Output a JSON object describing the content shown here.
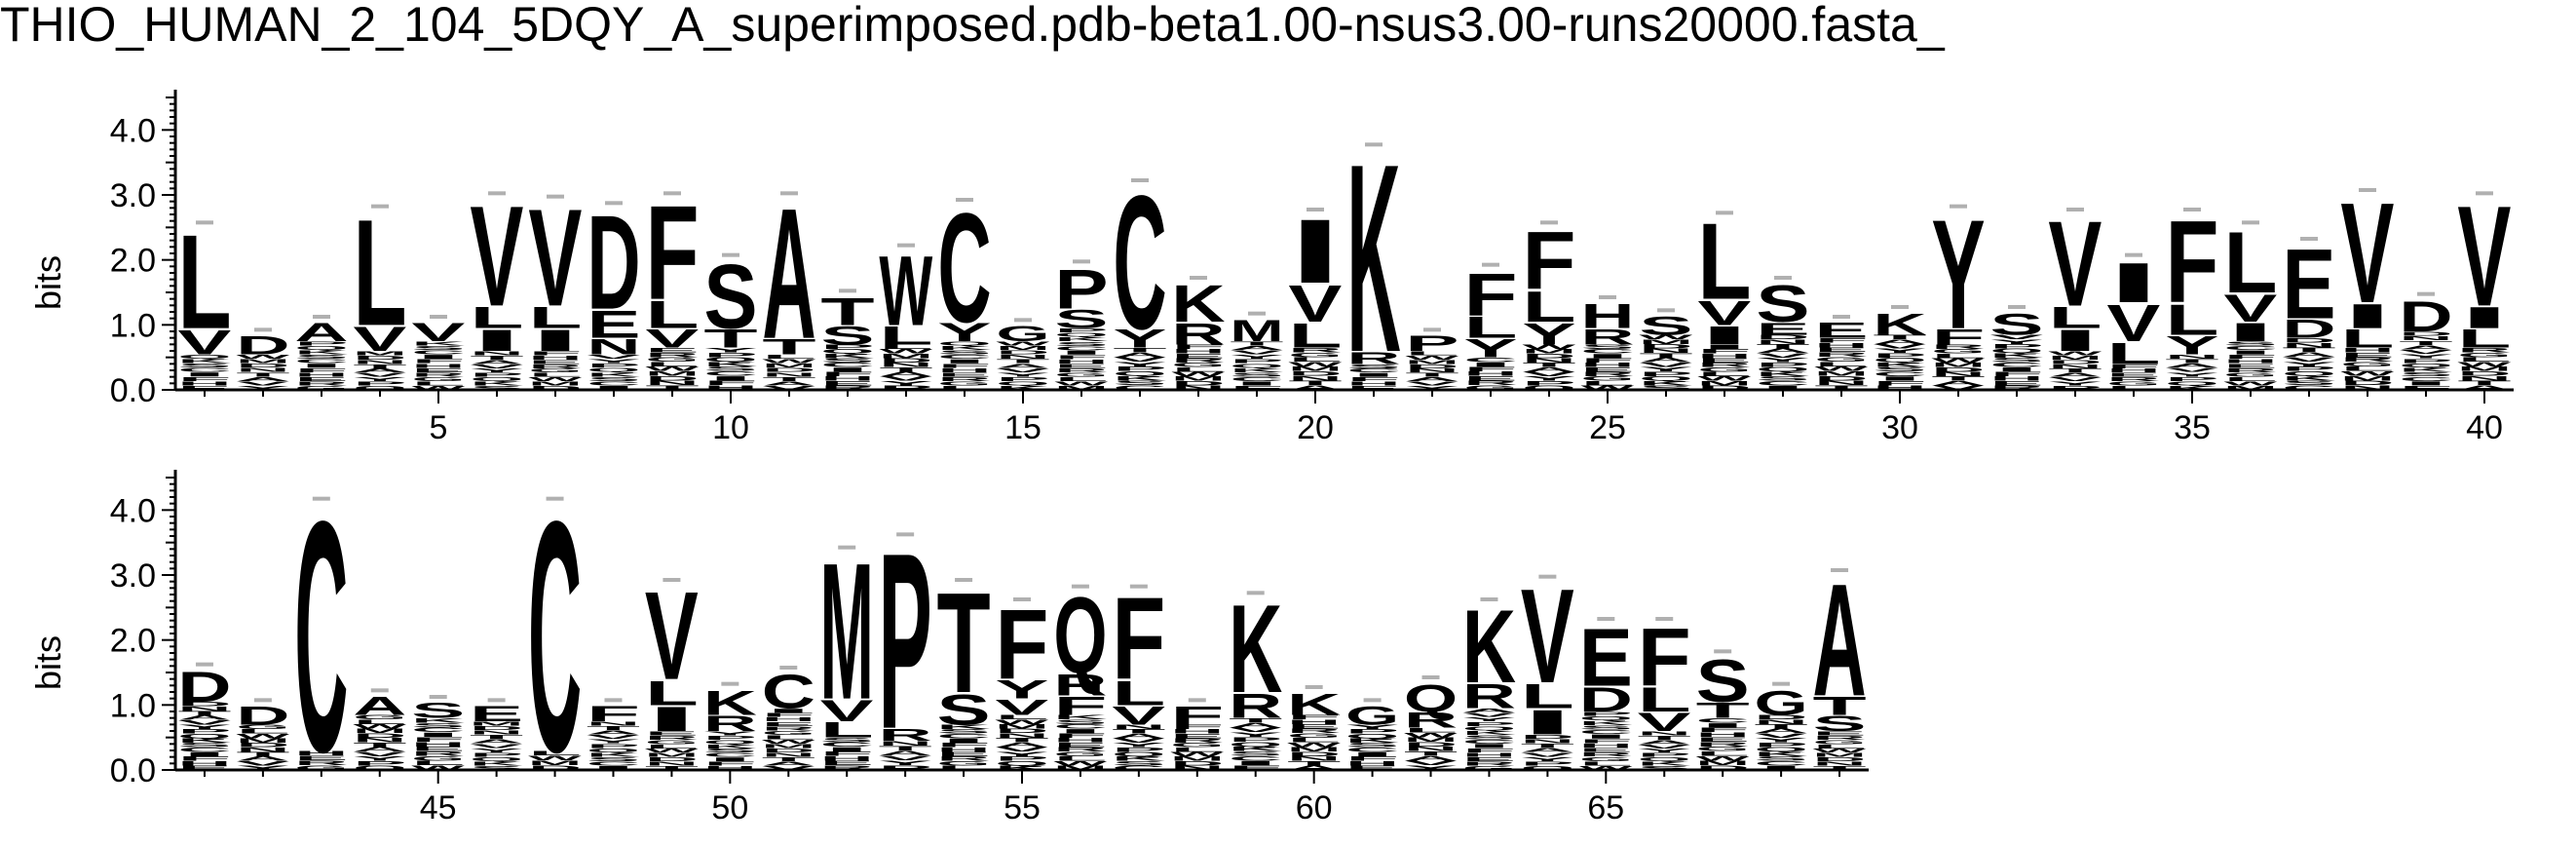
{
  "title": "THIO_HUMAN_2_104_5DQY_A_superimposed.pdb-beta1.00-nsus3.00-runs20000.fasta_",
  "chart_data": {
    "type": "sequence-logo",
    "ylabel": "bits",
    "ylim": [
      0,
      4.5
    ],
    "yticks": [
      "0.0",
      "1.0",
      "2.0",
      "3.0",
      "4.0"
    ],
    "rows": [
      {
        "xrange": [
          1,
          40
        ],
        "xticks": [
          5,
          10,
          15,
          20,
          25,
          30,
          35,
          40
        ],
        "positions": [
          {
            "pos": 1,
            "total": 2.5,
            "letters": [
              [
                "L",
                1.55
              ],
              [
                "V",
                0.4
              ]
            ]
          },
          {
            "pos": 2,
            "total": 0.85,
            "letters": [
              [
                "D",
                0.3
              ]
            ]
          },
          {
            "pos": 3,
            "total": 1.05,
            "letters": [
              [
                "A",
                0.3
              ]
            ]
          },
          {
            "pos": 4,
            "total": 2.75,
            "letters": [
              [
                "L",
                1.75
              ],
              [
                "V",
                0.4
              ]
            ]
          },
          {
            "pos": 5,
            "total": 1.05,
            "letters": [
              [
                "V",
                0.3
              ]
            ]
          },
          {
            "pos": 6,
            "total": 2.95,
            "letters": [
              [
                "V",
                1.65
              ],
              [
                "I",
                0.35
              ],
              [
                "L",
                0.35
              ]
            ]
          },
          {
            "pos": 7,
            "total": 2.9,
            "letters": [
              [
                "V",
                1.6
              ],
              [
                "I",
                0.35
              ],
              [
                "L",
                0.35
              ]
            ]
          },
          {
            "pos": 8,
            "total": 2.8,
            "letters": [
              [
                "D",
                1.55
              ],
              [
                "E",
                0.45
              ],
              [
                "N",
                0.25
              ]
            ]
          },
          {
            "pos": 9,
            "total": 2.95,
            "letters": [
              [
                "F",
                1.55
              ],
              [
                "L",
                0.45
              ],
              [
                "V",
                0.3
              ]
            ]
          },
          {
            "pos": 10,
            "total": 2.0,
            "letters": [
              [
                "S",
                1.05
              ],
              [
                "T",
                0.3
              ]
            ]
          },
          {
            "pos": 11,
            "total": 2.95,
            "letters": [
              [
                "A",
                2.15
              ],
              [
                "T",
                0.25
              ]
            ]
          },
          {
            "pos": 12,
            "total": 1.45,
            "letters": [
              [
                "T",
                0.45
              ],
              [
                "S",
                0.3
              ]
            ]
          },
          {
            "pos": 13,
            "total": 2.15,
            "letters": [
              [
                "W",
                1.15
              ],
              [
                "L",
                0.3
              ]
            ]
          },
          {
            "pos": 14,
            "total": 2.85,
            "letters": [
              [
                "C",
                1.8
              ],
              [
                "Y",
                0.3
              ]
            ]
          },
          {
            "pos": 15,
            "total": 1.0,
            "letters": [
              [
                "G",
                0.25
              ]
            ]
          },
          {
            "pos": 16,
            "total": 1.9,
            "letters": [
              [
                "P",
                0.65
              ],
              [
                "S",
                0.3
              ]
            ]
          },
          {
            "pos": 17,
            "total": 3.15,
            "letters": [
              [
                "C",
                2.2
              ],
              [
                "Y",
                0.3
              ]
            ]
          },
          {
            "pos": 18,
            "total": 1.65,
            "letters": [
              [
                "K",
                0.6
              ],
              [
                "R",
                0.35
              ]
            ]
          },
          {
            "pos": 19,
            "total": 1.1,
            "letters": [
              [
                "M",
                0.35
              ]
            ]
          },
          {
            "pos": 20,
            "total": 2.7,
            "letters": [
              [
                "I",
                1.05
              ],
              [
                "V",
                0.6
              ],
              [
                "L",
                0.4
              ]
            ]
          },
          {
            "pos": 21,
            "total": 3.7,
            "letters": [
              [
                "K",
                3.1
              ],
              [
                "R",
                0.2
              ]
            ]
          },
          {
            "pos": 22,
            "total": 0.85,
            "letters": [
              [
                "P",
                0.25
              ]
            ]
          },
          {
            "pos": 23,
            "total": 1.85,
            "letters": [
              [
                "F",
                0.7
              ],
              [
                "L",
                0.35
              ],
              [
                "Y",
                0.3
              ]
            ]
          },
          {
            "pos": 24,
            "total": 2.5,
            "letters": [
              [
                "F",
                0.95
              ],
              [
                "L",
                0.5
              ],
              [
                "Y",
                0.35
              ]
            ]
          },
          {
            "pos": 25,
            "total": 1.35,
            "letters": [
              [
                "H",
                0.4
              ],
              [
                "R",
                0.25
              ]
            ]
          },
          {
            "pos": 26,
            "total": 1.15,
            "letters": [
              [
                "S",
                0.3
              ]
            ]
          },
          {
            "pos": 27,
            "total": 2.65,
            "letters": [
              [
                "L",
                1.25
              ],
              [
                "V",
                0.4
              ],
              [
                "I",
                0.3
              ]
            ]
          },
          {
            "pos": 28,
            "total": 1.65,
            "letters": [
              [
                "S",
                0.6
              ],
              [
                "E",
                0.2
              ]
            ]
          },
          {
            "pos": 29,
            "total": 1.05,
            "letters": [
              [
                "E",
                0.25
              ]
            ]
          },
          {
            "pos": 30,
            "total": 1.2,
            "letters": [
              [
                "K",
                0.35
              ]
            ]
          },
          {
            "pos": 31,
            "total": 2.75,
            "letters": [
              [
                "Y",
                1.8
              ],
              [
                "F",
                0.25
              ]
            ]
          },
          {
            "pos": 32,
            "total": 1.2,
            "letters": [
              [
                "S",
                0.35
              ]
            ]
          },
          {
            "pos": 33,
            "total": 2.7,
            "letters": [
              [
                "V",
                1.4
              ],
              [
                "I",
                0.35
              ],
              [
                "L",
                0.35
              ]
            ]
          },
          {
            "pos": 34,
            "total": 2.0,
            "letters": [
              [
                "I",
                0.65
              ],
              [
                "V",
                0.6
              ],
              [
                "L",
                0.35
              ]
            ]
          },
          {
            "pos": 35,
            "total": 2.7,
            "letters": [
              [
                "F",
                1.35
              ],
              [
                "L",
                0.5
              ],
              [
                "Y",
                0.3
              ]
            ]
          },
          {
            "pos": 36,
            "total": 2.5,
            "letters": [
              [
                "L",
                1.0
              ],
              [
                "V",
                0.45
              ],
              [
                "I",
                0.3
              ]
            ]
          },
          {
            "pos": 37,
            "total": 2.25,
            "letters": [
              [
                "E",
                1.15
              ],
              [
                "D",
                0.3
              ]
            ]
          },
          {
            "pos": 38,
            "total": 3.0,
            "letters": [
              [
                "V",
                1.65
              ],
              [
                "I",
                0.4
              ],
              [
                "L",
                0.3
              ]
            ]
          },
          {
            "pos": 39,
            "total": 1.4,
            "letters": [
              [
                "D",
                0.5
              ]
            ]
          },
          {
            "pos": 40,
            "total": 2.95,
            "letters": [
              [
                "V",
                1.65
              ],
              [
                "I",
                0.35
              ],
              [
                "L",
                0.3
              ]
            ]
          }
        ]
      },
      {
        "xrange": [
          41,
          69
        ],
        "xticks": [
          45,
          50,
          55,
          60,
          65
        ],
        "positions": [
          {
            "pos": 41,
            "total": 1.55,
            "letters": [
              [
                "D",
                0.5
              ]
            ]
          },
          {
            "pos": 42,
            "total": 1.0,
            "letters": [
              [
                "D",
                0.3
              ]
            ]
          },
          {
            "pos": 43,
            "total": 4.1,
            "letters": [
              [
                "C",
                3.8
              ]
            ]
          },
          {
            "pos": 44,
            "total": 1.15,
            "letters": [
              [
                "A",
                0.3
              ]
            ]
          },
          {
            "pos": 45,
            "total": 1.05,
            "letters": [
              [
                "S",
                0.25
              ]
            ]
          },
          {
            "pos": 46,
            "total": 1.0,
            "letters": [
              [
                "E",
                0.25
              ]
            ]
          },
          {
            "pos": 47,
            "total": 4.1,
            "letters": [
              [
                "C",
                3.8
              ]
            ]
          },
          {
            "pos": 48,
            "total": 1.0,
            "letters": [
              [
                "F",
                0.25
              ]
            ]
          },
          {
            "pos": 49,
            "total": 2.85,
            "letters": [
              [
                "V",
                1.45
              ],
              [
                "I",
                0.4
              ],
              [
                "L",
                0.4
              ]
            ]
          },
          {
            "pos": 50,
            "total": 1.25,
            "letters": [
              [
                "K",
                0.4
              ],
              [
                "R",
                0.25
              ]
            ]
          },
          {
            "pos": 51,
            "total": 1.5,
            "letters": [
              [
                "C",
                0.55
              ]
            ]
          },
          {
            "pos": 52,
            "total": 3.35,
            "letters": [
              [
                "M",
                2.25
              ],
              [
                "V",
                0.35
              ],
              [
                "L",
                0.25
              ]
            ]
          },
          {
            "pos": 53,
            "total": 3.55,
            "letters": [
              [
                "P",
                2.9
              ],
              [
                "R",
                0.2
              ]
            ]
          },
          {
            "pos": 54,
            "total": 2.85,
            "letters": [
              [
                "T",
                1.65
              ],
              [
                "S",
                0.5
              ]
            ]
          },
          {
            "pos": 55,
            "total": 2.55,
            "letters": [
              [
                "F",
                1.15
              ],
              [
                "Y",
                0.3
              ],
              [
                "V",
                0.25
              ]
            ]
          },
          {
            "pos": 56,
            "total": 2.75,
            "letters": [
              [
                "Q",
                1.25
              ],
              [
                "R",
                0.35
              ],
              [
                "F",
                0.3
              ]
            ]
          },
          {
            "pos": 57,
            "total": 2.75,
            "letters": [
              [
                "F",
                1.35
              ],
              [
                "L",
                0.4
              ],
              [
                "V",
                0.3
              ]
            ]
          },
          {
            "pos": 58,
            "total": 1.0,
            "letters": [
              [
                "F",
                0.3
              ]
            ]
          },
          {
            "pos": 59,
            "total": 2.65,
            "letters": [
              [
                "K",
                1.45
              ],
              [
                "R",
                0.4
              ]
            ]
          },
          {
            "pos": 60,
            "total": 1.2,
            "letters": [
              [
                "K",
                0.35
              ]
            ]
          },
          {
            "pos": 61,
            "total": 1.0,
            "letters": [
              [
                "G",
                0.3
              ]
            ]
          },
          {
            "pos": 62,
            "total": 1.35,
            "letters": [
              [
                "Q",
                0.45
              ],
              [
                "R",
                0.25
              ]
            ]
          },
          {
            "pos": 63,
            "total": 2.55,
            "letters": [
              [
                "K",
                1.2
              ],
              [
                "R",
                0.4
              ]
            ]
          },
          {
            "pos": 64,
            "total": 2.9,
            "letters": [
              [
                "V",
                1.55
              ],
              [
                "I",
                0.4
              ],
              [
                "L",
                0.4
              ]
            ]
          },
          {
            "pos": 65,
            "total": 2.25,
            "letters": [
              [
                "E",
                0.95
              ],
              [
                "D",
                0.4
              ]
            ]
          },
          {
            "pos": 66,
            "total": 2.25,
            "letters": [
              [
                "F",
                0.95
              ],
              [
                "L",
                0.4
              ],
              [
                "V",
                0.3
              ]
            ]
          },
          {
            "pos": 67,
            "total": 1.75,
            "letters": [
              [
                "S",
                0.7
              ],
              [
                "T",
                0.25
              ]
            ]
          },
          {
            "pos": 68,
            "total": 1.25,
            "letters": [
              [
                "G",
                0.4
              ]
            ]
          },
          {
            "pos": 69,
            "total": 3.0,
            "letters": [
              [
                "A",
                1.85
              ],
              [
                "T",
                0.3
              ],
              [
                "S",
                0.25
              ]
            ]
          }
        ]
      }
    ]
  }
}
